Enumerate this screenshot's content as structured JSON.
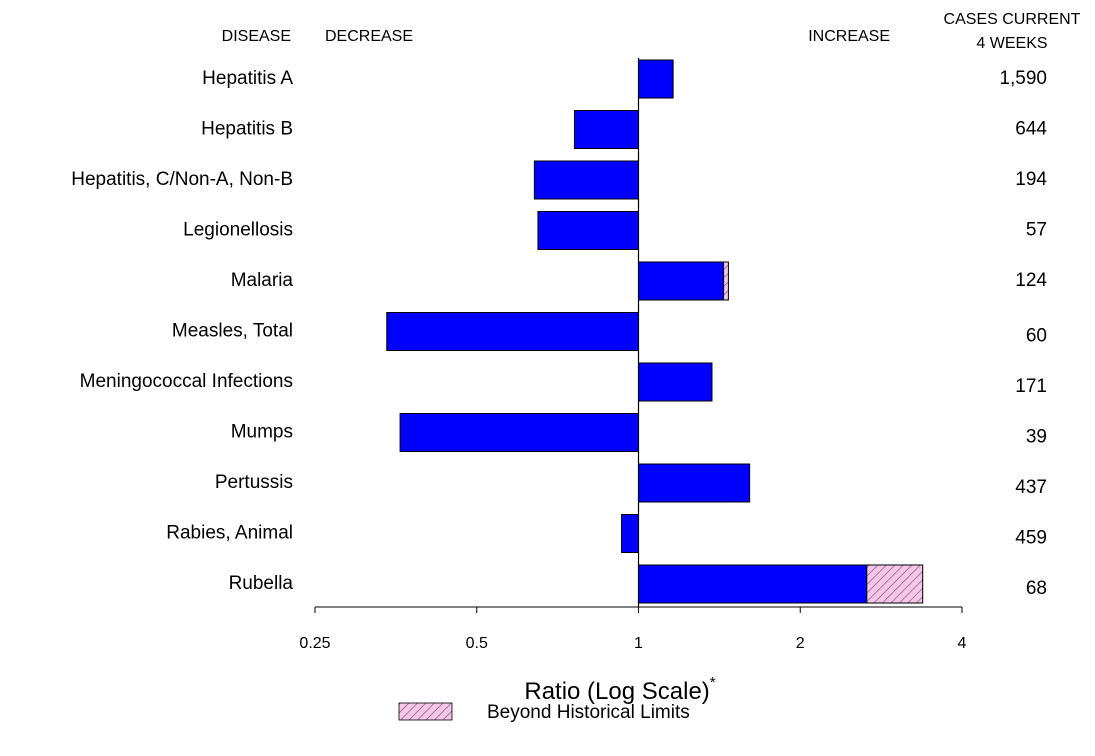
{
  "chart_data": {
    "type": "bar",
    "orientation": "horizontal",
    "xscale": "log",
    "headers": {
      "disease": "DISEASE",
      "decrease": "DECREASE",
      "increase": "INCREASE",
      "cases": [
        "CASES CURRENT",
        "4 WEEKS"
      ]
    },
    "categories": [
      "Hepatitis A",
      "Hepatitis B",
      "Hepatitis, C/Non-A, Non-B",
      "Legionellosis",
      "Malaria",
      "Measles, Total",
      "Meningococcal Infections",
      "Mumps",
      "Pertussis",
      "Rabies, Animal",
      "Rubella"
    ],
    "values": [
      1.16,
      0.76,
      0.64,
      0.65,
      1.47,
      0.34,
      1.37,
      0.36,
      1.61,
      0.93,
      3.38
    ],
    "limits": [
      null,
      null,
      null,
      null,
      1.44,
      null,
      null,
      null,
      null,
      null,
      2.66
    ],
    "cases": [
      "1,590",
      "644",
      "194",
      "57",
      "124",
      "60",
      "171",
      "39",
      "437",
      "459",
      "68"
    ],
    "color": "#0000ff",
    "beyond_color": "#f4c6e8",
    "xlim": [
      0.25,
      4
    ],
    "xticks": [
      0.25,
      0.5,
      1,
      2,
      4
    ],
    "xlabel": "Ratio (Log Scale)",
    "xlabel_note": "*",
    "legend": "Beyond Historical Limits"
  }
}
